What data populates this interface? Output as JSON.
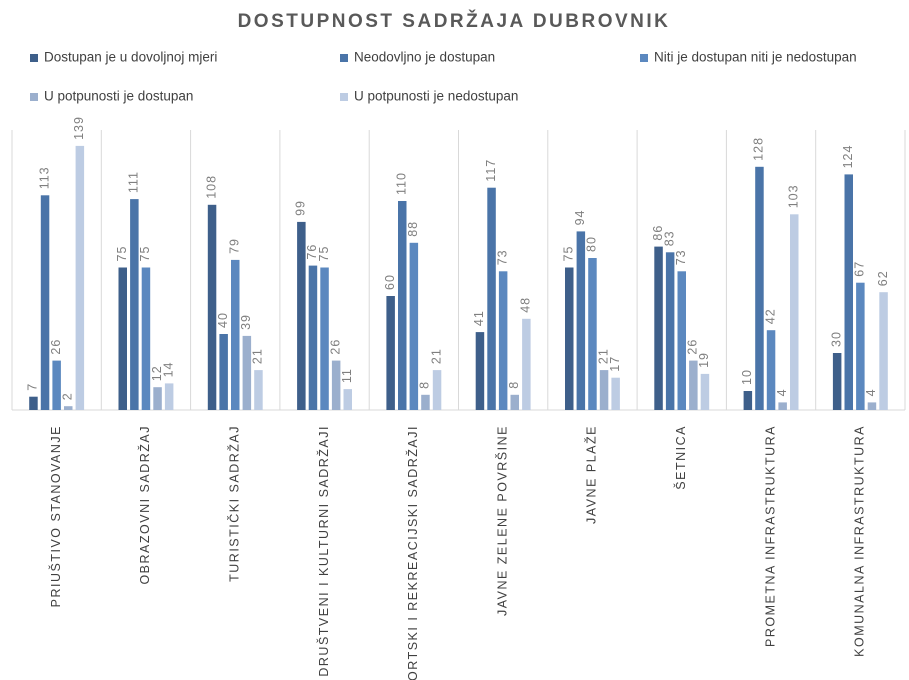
{
  "chart_data": {
    "type": "bar",
    "title": "DOSTUPNOST SADRŽAJA DUBROVNIK",
    "categories": [
      "PRIUŠTIVO STANOVANJE",
      "OBRAZOVNI SADRŽAJ",
      "TURISTIČKI SADRŽAJ",
      "DRUŠTVENI I KULTURNI SADRŽAJI",
      "SPORTSKI I REKREACIJSKI SADRŽAJI",
      "JAVNE ZELENE POVRŠINE",
      "JAVNE PLAŽE",
      "ŠETNICA",
      "PROMETNA INFRASTRUKTURA",
      "KOMUNALNA INFRASTRUKTURA"
    ],
    "series": [
      {
        "name": "Dostupan je u dovoljnoj mjeri",
        "color": "#3e5f8a",
        "values": [
          7,
          75,
          108,
          99,
          60,
          41,
          75,
          86,
          10,
          30
        ]
      },
      {
        "name": "Neodovljno je dostupan",
        "color": "#4a74a8",
        "values": [
          113,
          111,
          40,
          76,
          110,
          117,
          94,
          83,
          128,
          124
        ]
      },
      {
        "name": "Niti je dostupan niti je nedostupan",
        "color": "#5b88bf",
        "values": [
          26,
          75,
          79,
          75,
          88,
          73,
          80,
          73,
          42,
          67
        ]
      },
      {
        "name": "U potpunosti je dostupan",
        "color": "#9bafcd",
        "values": [
          2,
          12,
          39,
          26,
          8,
          8,
          21,
          26,
          4,
          4
        ]
      },
      {
        "name": "U potpunosti je nedostupan",
        "color": "#bdcce3",
        "values": [
          139,
          14,
          21,
          11,
          21,
          48,
          17,
          19,
          103,
          62
        ]
      }
    ]
  }
}
